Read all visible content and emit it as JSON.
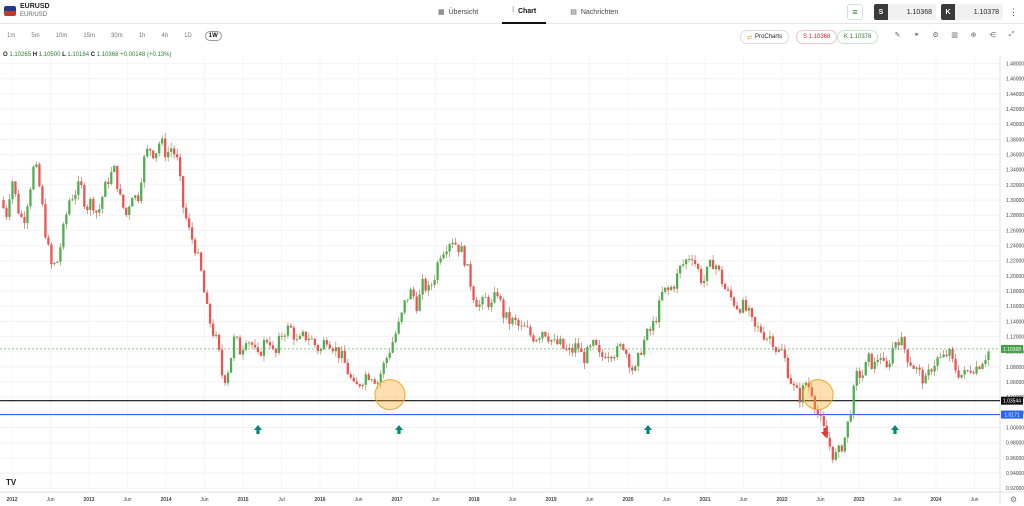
{
  "symbol": {
    "name": "EURUSD",
    "sub": "EUR/USD"
  },
  "tabs": [
    {
      "label": "Übersicht",
      "icon": "▦"
    },
    {
      "label": "Chart",
      "icon": "⫶"
    },
    {
      "label": "Nachrichten",
      "icon": "▤"
    }
  ],
  "quotes": {
    "sell_tag": "S",
    "sell": "1.10368",
    "buy_tag": "K",
    "buy": "1.10378"
  },
  "timeframes": [
    "1m",
    "5m",
    "10m",
    "15m",
    "30m",
    "1h",
    "4h",
    "1D",
    "1W"
  ],
  "toolbar": {
    "procharts": "ProCharts",
    "sell_label": "S 1.10368",
    "buy_label": "K 1.10378"
  },
  "ohlc": {
    "o_label": "O",
    "o": "1.10265",
    "h_label": "H",
    "h": "1.10500",
    "l_label": "L",
    "l": "1.10184",
    "c_label": "C",
    "c": "1.10368",
    "chg": "+0.00148 (+0.13%)"
  },
  "chart_data": {
    "type": "candlestick",
    "y_ticks": [
      "1.48000",
      "1.46000",
      "1.44000",
      "1.42000",
      "1.40000",
      "1.38000",
      "1.36000",
      "1.34000",
      "1.32000",
      "1.30000",
      "1.28000",
      "1.26000",
      "1.24000",
      "1.22000",
      "1.20000",
      "1.18000",
      "1.16000",
      "1.14000",
      "1.12000",
      "1.10000",
      "1.08000",
      "1.06000",
      "1.04000",
      "1.02000",
      "1.00000",
      "0.98000",
      "0.96000",
      "0.94000",
      "0.92000"
    ],
    "ylim": [
      0.915,
      1.49
    ],
    "x_labels": [
      {
        "t": "2012",
        "yr": true
      },
      {
        "t": "Jun",
        "yr": false
      },
      {
        "t": "2013",
        "yr": true
      },
      {
        "t": "Jun",
        "yr": false
      },
      {
        "t": "2014",
        "yr": true
      },
      {
        "t": "Jun",
        "yr": false
      },
      {
        "t": "2015",
        "yr": true
      },
      {
        "t": "Jul",
        "yr": false
      },
      {
        "t": "2016",
        "yr": true
      },
      {
        "t": "Jun",
        "yr": false
      },
      {
        "t": "2017",
        "yr": true
      },
      {
        "t": "Jun",
        "yr": false
      },
      {
        "t": "2018",
        "yr": true
      },
      {
        "t": "Jun",
        "yr": false
      },
      {
        "t": "2019",
        "yr": true
      },
      {
        "t": "Jun",
        "yr": false
      },
      {
        "t": "2020",
        "yr": true
      },
      {
        "t": "Jun",
        "yr": false
      },
      {
        "t": "2021",
        "yr": true
      },
      {
        "t": "Jun",
        "yr": false
      },
      {
        "t": "2022",
        "yr": true
      },
      {
        "t": "Jun",
        "yr": false
      },
      {
        "t": "2023",
        "yr": true
      },
      {
        "t": "Jun",
        "yr": false
      },
      {
        "t": "2024",
        "yr": true
      },
      {
        "t": "Jun",
        "yr": false
      }
    ],
    "series": [
      1.3,
      1.28,
      1.33,
      1.29,
      1.27,
      1.31,
      1.35,
      1.31,
      1.25,
      1.21,
      1.22,
      1.26,
      1.3,
      1.31,
      1.32,
      1.29,
      1.3,
      1.28,
      1.31,
      1.33,
      1.34,
      1.3,
      1.28,
      1.31,
      1.3,
      1.35,
      1.37,
      1.36,
      1.38,
      1.36,
      1.37,
      1.35,
      1.29,
      1.26,
      1.24,
      1.21,
      1.16,
      1.13,
      1.11,
      1.06,
      1.08,
      1.12,
      1.1,
      1.12,
      1.11,
      1.09,
      1.11,
      1.12,
      1.09,
      1.12,
      1.13,
      1.13,
      1.11,
      1.12,
      1.12,
      1.11,
      1.1,
      1.12,
      1.11,
      1.1,
      1.09,
      1.07,
      1.05,
      1.06,
      1.07,
      1.07,
      1.06,
      1.08,
      1.1,
      1.12,
      1.14,
      1.17,
      1.18,
      1.16,
      1.19,
      1.18,
      1.2,
      1.23,
      1.24,
      1.25,
      1.24,
      1.23,
      1.2,
      1.17,
      1.16,
      1.17,
      1.16,
      1.18,
      1.15,
      1.14,
      1.14,
      1.13,
      1.13,
      1.12,
      1.12,
      1.13,
      1.12,
      1.11,
      1.11,
      1.1,
      1.1,
      1.11,
      1.09,
      1.1,
      1.11,
      1.09,
      1.1,
      1.1,
      1.1,
      1.11,
      1.09,
      1.07,
      1.1,
      1.12,
      1.13,
      1.15,
      1.18,
      1.18,
      1.19,
      1.21,
      1.22,
      1.23,
      1.21,
      1.19,
      1.21,
      1.22,
      1.2,
      1.18,
      1.17,
      1.16,
      1.16,
      1.15,
      1.13,
      1.13,
      1.12,
      1.12,
      1.1,
      1.1,
      1.07,
      1.05,
      1.04,
      1.06,
      1.05,
      1.02,
      1.0,
      0.98,
      0.96,
      0.97,
      0.99,
      1.03,
      1.07,
      1.07,
      1.09,
      1.08,
      1.1,
      1.07,
      1.1,
      1.12,
      1.11,
      1.09,
      1.08,
      1.07,
      1.06,
      1.08,
      1.09,
      1.09,
      1.1,
      1.08,
      1.07,
      1.07,
      1.08,
      1.08,
      1.09,
      1.1
    ],
    "support_price": "1.03544",
    "lower_price": "1.0171",
    "current_price": "1.10368"
  }
}
